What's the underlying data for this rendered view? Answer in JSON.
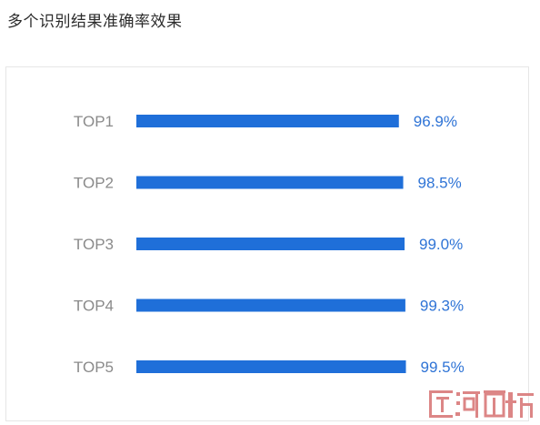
{
  "title": "多个识别结果准确率效果",
  "colors": {
    "bar": "#1f6fd9",
    "label": "#8a8a8a",
    "value": "#2f74d6",
    "border": "#e6e6e6",
    "watermark": "#d97a7a"
  },
  "chart_data": {
    "type": "bar",
    "orientation": "horizontal",
    "categories": [
      "TOP1",
      "TOP2",
      "TOP3",
      "TOP4",
      "TOP5"
    ],
    "values": [
      96.9,
      98.5,
      99.0,
      99.3,
      99.5
    ],
    "value_labels": [
      "96.9%",
      "98.5%",
      "99.0%",
      "99.3%",
      "99.5%"
    ],
    "unit": "%",
    "title": "多个识别结果准确率效果",
    "xlabel": "",
    "ylabel": "",
    "grid": false,
    "legend": "none"
  },
  "watermark": {
    "text": "匠河醇坊"
  }
}
